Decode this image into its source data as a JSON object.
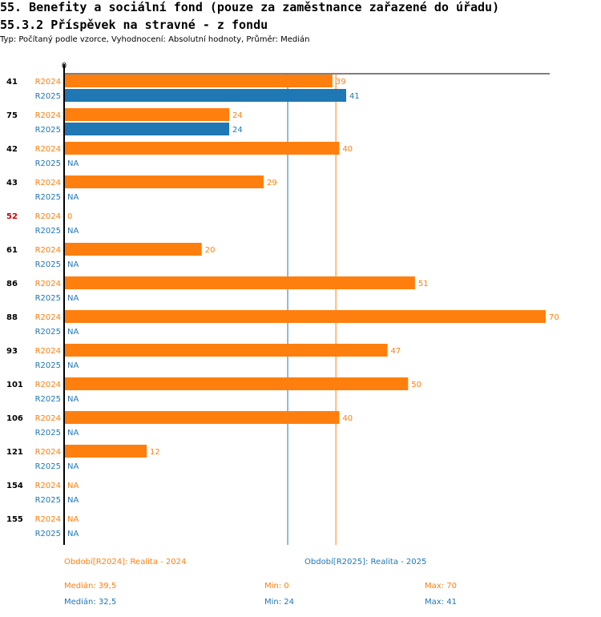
{
  "title": "55. Benefity a sociální fond (pouze za zaměstnance zařazené do úřadu)",
  "subtitle": "55.3.2 Příspěvek na stravné - z fondu",
  "info": "Typ: Počítaný podle vzorce, Vyhodnocení: Absolutní hodnoty, Průměr: Medián",
  "colors": {
    "r2024": "#ff7f0e",
    "r2025": "#1f77b4",
    "highlight": "#cc0000"
  },
  "chart_data": {
    "type": "bar",
    "orientation": "horizontal",
    "axis_zero_label": "0",
    "xlim": [
      0,
      70
    ],
    "categories": [
      "41",
      "75",
      "42",
      "43",
      "52",
      "61",
      "86",
      "88",
      "93",
      "101",
      "106",
      "121",
      "154",
      "155"
    ],
    "highlighted_category": "52",
    "series": [
      {
        "name": "R2024",
        "values": [
          39,
          24,
          40,
          29,
          0,
          20,
          51,
          70,
          47,
          50,
          40,
          12,
          null,
          null
        ]
      },
      {
        "name": "R2025",
        "values": [
          41,
          24,
          null,
          null,
          null,
          null,
          null,
          null,
          null,
          null,
          null,
          null,
          null,
          null
        ]
      }
    ],
    "na_label": "NA",
    "median_lines": [
      {
        "series": "R2024",
        "value": 39.5
      },
      {
        "series": "R2025",
        "value": 32.5
      }
    ]
  },
  "legend": {
    "r2024": "Období[R2024]: Realita - 2024",
    "r2025": "Období[R2025]: Realita - 2025"
  },
  "stats": {
    "r2024": {
      "median": "Medián: 39,5",
      "min": "Min: 0",
      "max": "Max: 70"
    },
    "r2025": {
      "median": "Medián: 32,5",
      "min": "Min: 24",
      "max": "Max: 41"
    }
  }
}
